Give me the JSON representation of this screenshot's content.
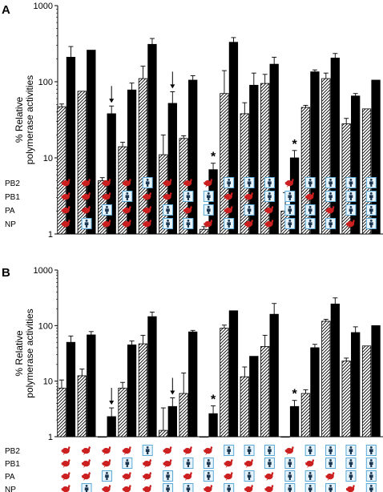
{
  "colors": {
    "avian_icon": "#cc1f1f",
    "human_icon_box": "#5aa8d6",
    "human_icon_fill": "#1a3550",
    "bar_solid": "#000000",
    "bar_hatch": "#ffffff"
  },
  "icons": {
    "a": "avian-bird-icon",
    "h": "human-figure-icon"
  },
  "row_labels": [
    "PB2",
    "PB1",
    "PA",
    "NP"
  ],
  "chart_data": [
    {
      "panel": "A",
      "type": "bar",
      "scale": "log",
      "ylim": [
        1,
        1000
      ],
      "yticks": [
        1,
        10,
        100,
        1000
      ],
      "ytick_labels": [
        "1",
        "10",
        "100",
        "1000"
      ],
      "ylabel": [
        "% Relative",
        "polymerase activities"
      ],
      "series": [
        {
          "values": [
            47,
            75,
            5,
            14,
            110,
            11,
            18,
            1.15,
            70,
            38,
            95,
            2,
            46,
            110,
            28,
            44
          ],
          "err": [
            4,
            0,
            0.5,
            2,
            50,
            9,
            1.5,
            0.1,
            70,
            15,
            30,
            1.5,
            3,
            20,
            5,
            0
          ]
        },
        {
          "values": [
            210,
            260,
            38,
            78,
            310,
            52,
            105,
            7,
            330,
            90,
            170,
            10,
            135,
            205,
            65,
            105
          ],
          "err": [
            80,
            0,
            10,
            18,
            60,
            22,
            15,
            1.5,
            50,
            40,
            40,
            2.5,
            8,
            30,
            5,
            0
          ]
        }
      ],
      "arrows": [
        2,
        5
      ],
      "stars": [
        7,
        11
      ],
      "genotypes": [
        [
          "a",
          "a",
          "a",
          "a"
        ],
        [
          "a",
          "a",
          "a",
          "h"
        ],
        [
          "a",
          "a",
          "h",
          "a"
        ],
        [
          "a",
          "h",
          "a",
          "a"
        ],
        [
          "h",
          "a",
          "a",
          "a"
        ],
        [
          "a",
          "a",
          "h",
          "h"
        ],
        [
          "a",
          "h",
          "a",
          "h"
        ],
        [
          "a",
          "h",
          "h",
          "a"
        ],
        [
          "h",
          "a",
          "a",
          "h"
        ],
        [
          "h",
          "a",
          "h",
          "a"
        ],
        [
          "h",
          "h",
          "a",
          "a"
        ],
        [
          "a",
          "h",
          "h",
          "h"
        ],
        [
          "h",
          "a",
          "h",
          "h"
        ],
        [
          "h",
          "h",
          "a",
          "h"
        ],
        [
          "h",
          "h",
          "h",
          "a"
        ],
        [
          "h",
          "h",
          "h",
          "h"
        ]
      ]
    },
    {
      "panel": "B",
      "type": "bar",
      "scale": "log",
      "ylim": [
        1,
        1000
      ],
      "yticks": [
        1,
        10,
        100,
        1000
      ],
      "ytick_labels": [
        "1",
        "10",
        "100",
        "1000"
      ],
      "ylabel": [
        "% Relative",
        "polymerase activities"
      ],
      "series": [
        {
          "values": [
            7.5,
            12.5,
            1,
            7.5,
            47,
            1.3,
            6,
            1,
            90,
            12,
            42,
            1,
            6,
            120,
            23,
            43
          ],
          "err": [
            3,
            4,
            0,
            2,
            20,
            2,
            8,
            0,
            12,
            6,
            25,
            0,
            1,
            10,
            3,
            0
          ]
        },
        {
          "values": [
            50,
            68,
            2.3,
            45,
            145,
            3.5,
            77,
            2.6,
            185,
            28,
            160,
            3.5,
            40,
            245,
            75,
            100
          ],
          "err": [
            15,
            10,
            1,
            8,
            30,
            1.5,
            5,
            1,
            0,
            0,
            90,
            1,
            6,
            70,
            20,
            0
          ]
        }
      ],
      "arrows": [
        2,
        5
      ],
      "stars": [
        7,
        11
      ],
      "genotypes": [
        [
          "a",
          "a",
          "a",
          "a"
        ],
        [
          "a",
          "a",
          "a",
          "h"
        ],
        [
          "a",
          "a",
          "h",
          "a"
        ],
        [
          "a",
          "h",
          "a",
          "a"
        ],
        [
          "h",
          "a",
          "a",
          "a"
        ],
        [
          "a",
          "a",
          "h",
          "h"
        ],
        [
          "a",
          "h",
          "a",
          "h"
        ],
        [
          "a",
          "h",
          "h",
          "a"
        ],
        [
          "h",
          "a",
          "a",
          "h"
        ],
        [
          "h",
          "a",
          "h",
          "a"
        ],
        [
          "h",
          "h",
          "a",
          "a"
        ],
        [
          "a",
          "h",
          "h",
          "h"
        ],
        [
          "h",
          "a",
          "h",
          "h"
        ],
        [
          "h",
          "h",
          "a",
          "h"
        ],
        [
          "h",
          "h",
          "h",
          "a"
        ],
        [
          "h",
          "h",
          "h",
          "h"
        ]
      ]
    }
  ]
}
